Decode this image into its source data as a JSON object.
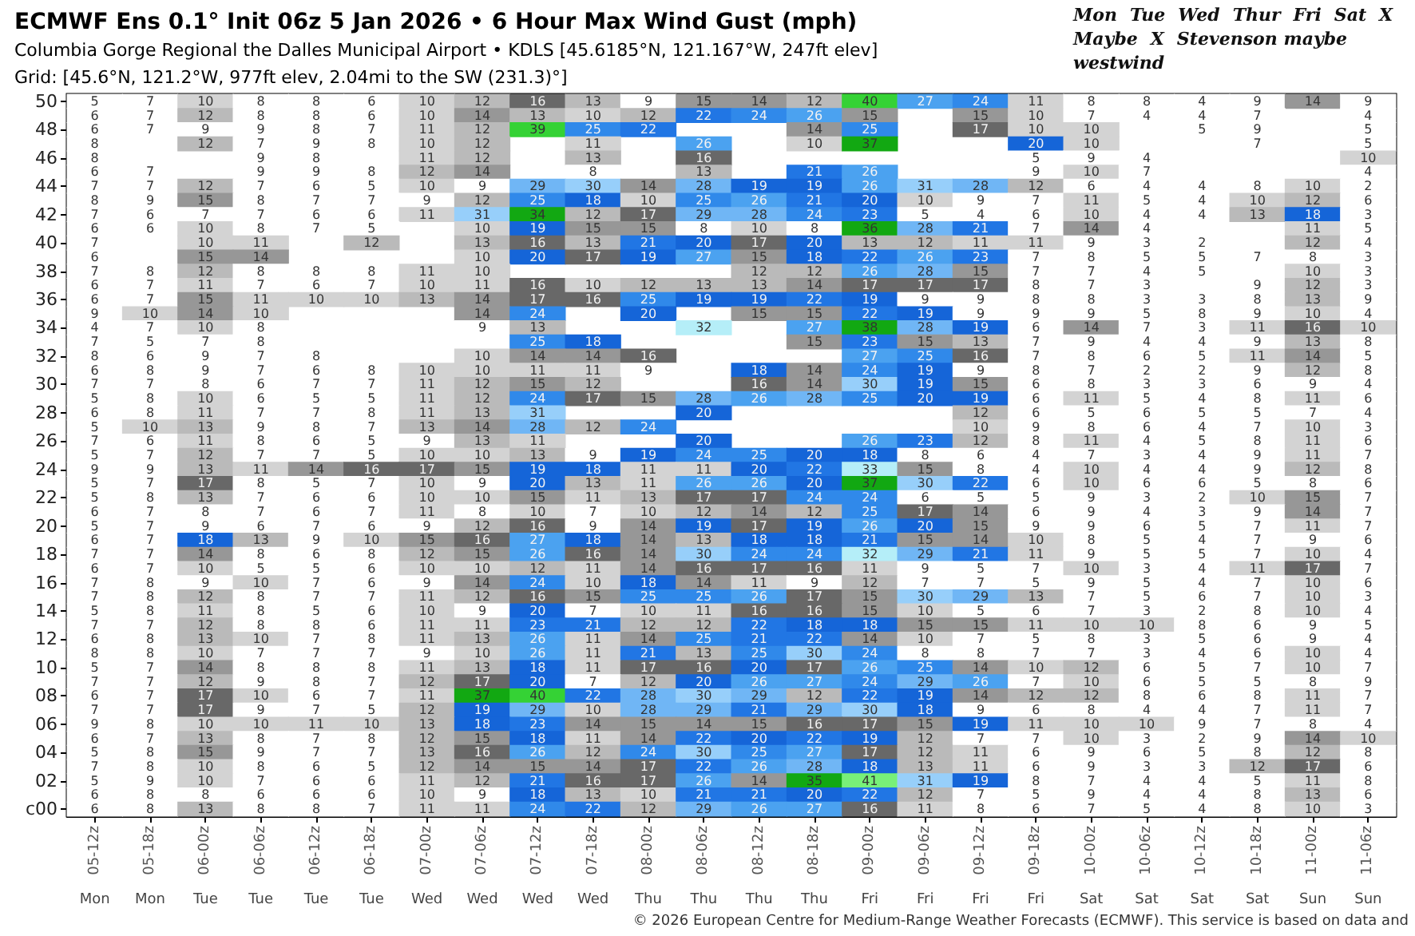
{
  "chart_data": {
    "type": "heatmap",
    "title": "ECMWF Ens 0.1° Init 06z 5 Jan 2026 • 6 Hour Max Wind Gust (mph)",
    "subtitle": "Columbia Gorge Regional the Dalles Municipal Airport • KDLS [45.6185°N, 121.167°W, 247ft elev]\nGrid: [45.6°N, 121.2°W, 977ft elev, 2.04mi to the SW (231.3)°]",
    "categories": [
      "05-12z",
      "05-18z",
      "06-00z",
      "06-06z",
      "06-12z",
      "06-18z",
      "07-00z",
      "07-06z",
      "07-12z",
      "07-18z",
      "08-00z",
      "08-06z",
      "08-12z",
      "08-18z",
      "09-00z",
      "09-06z",
      "09-12z",
      "09-18z",
      "10-00z",
      "10-06z",
      "10-12z",
      "10-18z",
      "11-00z",
      "11-06z"
    ],
    "y_categories": [
      "50",
      null,
      "48",
      null,
      "46",
      null,
      "44",
      null,
      "42",
      null,
      "40",
      null,
      "38",
      null,
      "36",
      null,
      "34",
      null,
      "32",
      null,
      "30",
      null,
      "28",
      null,
      "26",
      null,
      "24",
      null,
      "22",
      null,
      "20",
      null,
      "18",
      null,
      "16",
      null,
      "14",
      null,
      "12",
      null,
      "10",
      null,
      "08",
      null,
      "06",
      null,
      "04",
      null,
      "02",
      null,
      "c00"
    ],
    "cells": [
      [
        5,
        7,
        10,
        8,
        8,
        6,
        10,
        12,
        16,
        13,
        9,
        15,
        14,
        12,
        40,
        27,
        24,
        11,
        8,
        8,
        4,
        9,
        14,
        9
      ],
      [
        6,
        7,
        12,
        8,
        8,
        6,
        10,
        14,
        13,
        10,
        12,
        22,
        24,
        26,
        15,
        null,
        15,
        10,
        7,
        4,
        4,
        7,
        null,
        4
      ],
      [
        6,
        7,
        9,
        9,
        8,
        7,
        11,
        12,
        39,
        25,
        22,
        null,
        null,
        14,
        25,
        null,
        17,
        10,
        10,
        null,
        5,
        9,
        null,
        5
      ],
      [
        8,
        null,
        12,
        7,
        9,
        8,
        10,
        12,
        null,
        11,
        null,
        26,
        null,
        10,
        37,
        null,
        null,
        20,
        10,
        null,
        null,
        7,
        null,
        5
      ],
      [
        8,
        null,
        null,
        9,
        8,
        null,
        11,
        12,
        null,
        13,
        null,
        16,
        null,
        null,
        null,
        null,
        null,
        5,
        9,
        4,
        null,
        null,
        null,
        10
      ],
      [
        6,
        7,
        null,
        9,
        9,
        8,
        12,
        14,
        null,
        8,
        null,
        13,
        null,
        21,
        26,
        null,
        null,
        9,
        10,
        7,
        null,
        null,
        null,
        4
      ],
      [
        7,
        7,
        12,
        7,
        6,
        5,
        10,
        9,
        29,
        30,
        14,
        28,
        19,
        19,
        26,
        31,
        28,
        12,
        6,
        4,
        4,
        8,
        10,
        2
      ],
      [
        8,
        9,
        15,
        8,
        7,
        7,
        9,
        12,
        25,
        18,
        10,
        25,
        26,
        21,
        20,
        10,
        9,
        7,
        11,
        5,
        4,
        10,
        12,
        6
      ],
      [
        7,
        6,
        7,
        7,
        6,
        6,
        11,
        31,
        34,
        12,
        17,
        29,
        28,
        24,
        23,
        5,
        4,
        6,
        10,
        4,
        4,
        13,
        18,
        3
      ],
      [
        6,
        6,
        10,
        8,
        7,
        5,
        null,
        10,
        19,
        15,
        15,
        8,
        10,
        8,
        36,
        28,
        21,
        7,
        14,
        4,
        null,
        null,
        11,
        5
      ],
      [
        7,
        null,
        10,
        11,
        null,
        12,
        null,
        13,
        16,
        13,
        21,
        20,
        17,
        20,
        13,
        12,
        11,
        11,
        9,
        3,
        2,
        null,
        12,
        4
      ],
      [
        6,
        null,
        15,
        14,
        null,
        null,
        null,
        10,
        20,
        17,
        19,
        27,
        15,
        18,
        22,
        26,
        23,
        7,
        8,
        5,
        5,
        7,
        8,
        3
      ],
      [
        7,
        8,
        12,
        8,
        8,
        8,
        11,
        10,
        null,
        null,
        null,
        null,
        12,
        12,
        26,
        28,
        15,
        7,
        7,
        4,
        5,
        null,
        10,
        3
      ],
      [
        6,
        7,
        11,
        7,
        6,
        7,
        10,
        11,
        16,
        10,
        12,
        13,
        13,
        14,
        17,
        17,
        17,
        8,
        7,
        3,
        null,
        9,
        12,
        3
      ],
      [
        6,
        7,
        15,
        11,
        10,
        10,
        13,
        14,
        17,
        16,
        25,
        19,
        19,
        22,
        19,
        9,
        9,
        8,
        8,
        3,
        3,
        8,
        13,
        9
      ],
      [
        9,
        10,
        14,
        10,
        null,
        null,
        null,
        14,
        24,
        null,
        20,
        null,
        15,
        15,
        22,
        19,
        9,
        9,
        9,
        5,
        8,
        9,
        10,
        4
      ],
      [
        4,
        7,
        10,
        8,
        null,
        null,
        null,
        9,
        13,
        null,
        null,
        32,
        null,
        27,
        38,
        28,
        19,
        6,
        14,
        7,
        3,
        11,
        16,
        10
      ],
      [
        7,
        5,
        7,
        8,
        null,
        null,
        null,
        null,
        25,
        18,
        null,
        null,
        null,
        15,
        23,
        15,
        13,
        7,
        9,
        4,
        4,
        9,
        13,
        8
      ],
      [
        8,
        6,
        9,
        7,
        8,
        null,
        null,
        10,
        14,
        14,
        16,
        null,
        null,
        null,
        27,
        25,
        16,
        7,
        8,
        6,
        5,
        11,
        14,
        5
      ],
      [
        6,
        8,
        9,
        7,
        6,
        8,
        10,
        10,
        11,
        11,
        9,
        null,
        18,
        14,
        24,
        19,
        9,
        8,
        7,
        2,
        2,
        9,
        12,
        8
      ],
      [
        7,
        7,
        8,
        6,
        7,
        7,
        11,
        12,
        15,
        12,
        null,
        null,
        16,
        14,
        30,
        19,
        15,
        6,
        8,
        3,
        3,
        6,
        9,
        4
      ],
      [
        5,
        8,
        10,
        6,
        5,
        5,
        11,
        12,
        24,
        17,
        15,
        28,
        26,
        28,
        25,
        20,
        19,
        6,
        11,
        5,
        4,
        8,
        11,
        6
      ],
      [
        6,
        8,
        11,
        7,
        7,
        8,
        11,
        13,
        31,
        null,
        null,
        20,
        null,
        null,
        null,
        null,
        12,
        6,
        5,
        6,
        5,
        5,
        7,
        4
      ],
      [
        5,
        10,
        13,
        9,
        8,
        7,
        13,
        14,
        28,
        12,
        24,
        null,
        null,
        null,
        null,
        null,
        10,
        9,
        8,
        6,
        4,
        7,
        10,
        3
      ],
      [
        7,
        6,
        11,
        8,
        6,
        5,
        9,
        13,
        11,
        null,
        null,
        20,
        null,
        null,
        26,
        23,
        12,
        8,
        11,
        4,
        5,
        8,
        11,
        6
      ],
      [
        5,
        7,
        12,
        7,
        7,
        5,
        10,
        10,
        13,
        9,
        19,
        24,
        25,
        20,
        18,
        8,
        6,
        4,
        7,
        3,
        4,
        9,
        11,
        7
      ],
      [
        9,
        9,
        13,
        11,
        14,
        16,
        17,
        15,
        19,
        18,
        11,
        11,
        20,
        22,
        33,
        15,
        8,
        4,
        10,
        4,
        4,
        9,
        12,
        8
      ],
      [
        5,
        7,
        17,
        8,
        5,
        7,
        10,
        9,
        20,
        13,
        11,
        26,
        26,
        20,
        37,
        30,
        22,
        6,
        10,
        6,
        6,
        5,
        8,
        6
      ],
      [
        5,
        8,
        13,
        7,
        6,
        6,
        10,
        10,
        15,
        11,
        13,
        17,
        17,
        24,
        24,
        6,
        5,
        5,
        9,
        3,
        2,
        10,
        15,
        7
      ],
      [
        6,
        7,
        8,
        7,
        6,
        7,
        11,
        8,
        10,
        7,
        10,
        12,
        14,
        12,
        25,
        17,
        14,
        6,
        9,
        4,
        3,
        9,
        14,
        7
      ],
      [
        5,
        7,
        9,
        6,
        7,
        6,
        9,
        12,
        16,
        9,
        14,
        19,
        17,
        19,
        26,
        20,
        15,
        9,
        9,
        6,
        5,
        7,
        11,
        7
      ],
      [
        6,
        7,
        18,
        13,
        9,
        10,
        15,
        16,
        27,
        18,
        14,
        13,
        18,
        18,
        21,
        15,
        14,
        10,
        8,
        5,
        4,
        7,
        9,
        6
      ],
      [
        7,
        7,
        14,
        8,
        6,
        8,
        12,
        15,
        26,
        16,
        14,
        30,
        24,
        24,
        32,
        29,
        21,
        11,
        9,
        5,
        5,
        7,
        10,
        4
      ],
      [
        6,
        7,
        10,
        5,
        5,
        6,
        10,
        10,
        12,
        11,
        14,
        16,
        17,
        16,
        11,
        9,
        5,
        7,
        10,
        3,
        4,
        11,
        17,
        7
      ],
      [
        7,
        8,
        9,
        10,
        7,
        6,
        9,
        14,
        24,
        10,
        18,
        14,
        11,
        9,
        12,
        7,
        7,
        5,
        9,
        5,
        4,
        7,
        10,
        6
      ],
      [
        7,
        8,
        12,
        8,
        7,
        7,
        11,
        12,
        16,
        15,
        25,
        25,
        26,
        17,
        15,
        30,
        29,
        13,
        7,
        5,
        6,
        7,
        10,
        3
      ],
      [
        5,
        8,
        11,
        8,
        5,
        6,
        10,
        9,
        20,
        7,
        10,
        11,
        16,
        16,
        15,
        10,
        5,
        6,
        7,
        3,
        2,
        8,
        10,
        4
      ],
      [
        7,
        7,
        12,
        8,
        8,
        6,
        11,
        11,
        23,
        21,
        12,
        12,
        22,
        18,
        18,
        15,
        15,
        11,
        10,
        10,
        8,
        6,
        9,
        5
      ],
      [
        6,
        8,
        13,
        10,
        7,
        8,
        11,
        13,
        26,
        11,
        14,
        25,
        21,
        22,
        14,
        10,
        7,
        5,
        8,
        3,
        5,
        6,
        9,
        4
      ],
      [
        8,
        8,
        10,
        7,
        7,
        7,
        9,
        10,
        26,
        11,
        21,
        13,
        25,
        30,
        24,
        8,
        8,
        7,
        7,
        3,
        4,
        6,
        10,
        4
      ],
      [
        5,
        7,
        14,
        8,
        8,
        8,
        11,
        13,
        18,
        11,
        17,
        16,
        20,
        17,
        26,
        25,
        14,
        10,
        12,
        6,
        5,
        7,
        10,
        7
      ],
      [
        7,
        7,
        12,
        9,
        8,
        7,
        12,
        17,
        20,
        7,
        12,
        20,
        26,
        27,
        24,
        29,
        26,
        7,
        10,
        6,
        5,
        5,
        8,
        9
      ],
      [
        6,
        7,
        17,
        10,
        6,
        7,
        11,
        37,
        40,
        22,
        28,
        30,
        29,
        12,
        22,
        19,
        14,
        12,
        12,
        8,
        6,
        8,
        11,
        7
      ],
      [
        7,
        7,
        17,
        9,
        7,
        5,
        12,
        19,
        29,
        10,
        28,
        29,
        21,
        29,
        30,
        18,
        9,
        6,
        8,
        4,
        4,
        7,
        11,
        7
      ],
      [
        9,
        8,
        10,
        10,
        11,
        10,
        13,
        18,
        23,
        14,
        15,
        14,
        15,
        16,
        17,
        15,
        19,
        11,
        10,
        10,
        9,
        7,
        8,
        4
      ],
      [
        6,
        7,
        13,
        8,
        7,
        8,
        12,
        15,
        18,
        11,
        14,
        22,
        20,
        22,
        19,
        12,
        7,
        7,
        10,
        3,
        2,
        9,
        14,
        10
      ],
      [
        5,
        8,
        15,
        9,
        7,
        7,
        13,
        16,
        26,
        12,
        24,
        30,
        25,
        27,
        17,
        12,
        11,
        6,
        9,
        6,
        5,
        8,
        12,
        8
      ],
      [
        7,
        8,
        10,
        8,
        6,
        5,
        12,
        14,
        15,
        14,
        17,
        22,
        26,
        28,
        18,
        13,
        11,
        6,
        9,
        3,
        3,
        12,
        17,
        6
      ],
      [
        5,
        9,
        10,
        7,
        6,
        6,
        11,
        12,
        21,
        16,
        17,
        26,
        14,
        35,
        41,
        31,
        19,
        8,
        7,
        4,
        4,
        5,
        11,
        8
      ],
      [
        6,
        8,
        8,
        6,
        6,
        6,
        10,
        9,
        18,
        13,
        10,
        21,
        21,
        20,
        22,
        12,
        7,
        5,
        9,
        4,
        4,
        8,
        13,
        6
      ],
      [
        6,
        8,
        13,
        8,
        8,
        7,
        11,
        11,
        24,
        22,
        12,
        29,
        26,
        27,
        16,
        11,
        8,
        6,
        7,
        5,
        4,
        8,
        10,
        3
      ]
    ],
    "data_labels": true,
    "annotations": [
      "Mon",
      "Mon",
      "Tue",
      "Tue",
      "Tue",
      "Tue",
      "Wed",
      "Wed",
      "Wed",
      "Wed",
      "Thu",
      "Thu",
      "Thu",
      "Thu",
      "Fri",
      "Fri",
      "Fri",
      "Fri",
      "Sat",
      "Sat",
      "Sat",
      "Sat",
      "Sun",
      "Sun",
      "Mon",
      "Tue",
      "Wed",
      "Thur",
      "Fri",
      "Sat",
      "X",
      "Maybe",
      "X",
      "Stevenson maybe",
      "westwind",
      "© 2026 European Centre for Medium-Range Weather Forecasts (ECMWF). This service is based on data and"
    ]
  }
}
